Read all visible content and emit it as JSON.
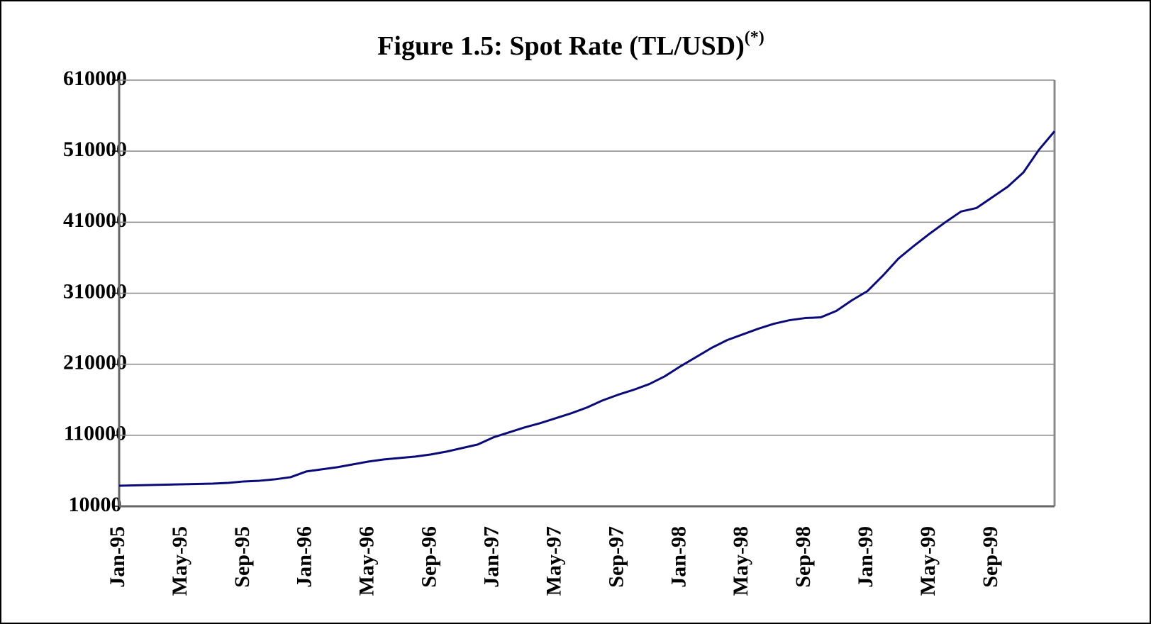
{
  "chart_data": {
    "type": "line",
    "title": "Figure 1.5: Spot Rate (TL/USD)",
    "title_superscript": "(*)",
    "categories": [
      "Jan-95",
      null,
      null,
      null,
      "May-95",
      null,
      null,
      null,
      "Sep-95",
      null,
      null,
      null,
      "Jan-96",
      null,
      null,
      null,
      "May-96",
      null,
      null,
      null,
      "Sep-96",
      null,
      null,
      null,
      "Jan-97",
      null,
      null,
      null,
      "May-97",
      null,
      null,
      null,
      "Sep-97",
      null,
      null,
      null,
      "Jan-98",
      null,
      null,
      null,
      "May-98",
      null,
      null,
      null,
      "Sep-98",
      null,
      null,
      null,
      "Jan-99",
      null,
      null,
      null,
      "May-99",
      null,
      null,
      null,
      "Sep-99",
      null,
      null,
      null,
      null
    ],
    "series": [
      {
        "name": "Spot Rate",
        "color": "#0a0a78",
        "values": [
          39000,
          39500,
          40000,
          40500,
          41000,
          41500,
          42000,
          43000,
          45000,
          46000,
          48000,
          51000,
          59000,
          62000,
          65000,
          69000,
          73000,
          76000,
          78000,
          80000,
          83000,
          87000,
          92000,
          97000,
          107000,
          114000,
          121000,
          127000,
          134000,
          141000,
          149000,
          159000,
          167000,
          174000,
          182000,
          193000,
          207000,
          220000,
          233000,
          244000,
          252000,
          260000,
          267000,
          272000,
          275000,
          276000,
          285000,
          300000,
          313000,
          335000,
          359000,
          377000,
          394000,
          410000,
          425000,
          430000,
          445000,
          460000,
          480000,
          512000,
          538000
        ]
      }
    ],
    "ylim": [
      10000,
      610000
    ],
    "yticks": [
      10000,
      110000,
      210000,
      310000,
      410000,
      510000,
      610000
    ],
    "grid": true
  }
}
